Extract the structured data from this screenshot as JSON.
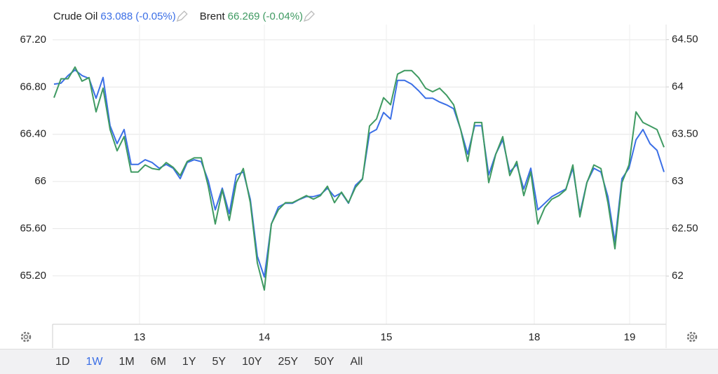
{
  "chart_data": {
    "type": "line",
    "x": [
      0,
      1,
      2,
      3,
      4,
      5,
      6,
      7,
      8,
      9,
      10,
      11,
      12,
      13,
      14,
      15,
      16,
      17,
      18,
      19,
      20,
      21,
      22,
      23,
      24,
      25,
      26,
      27,
      28,
      29,
      30,
      31,
      32,
      33,
      34,
      35,
      36,
      37,
      38,
      39,
      40,
      41,
      42,
      43,
      44,
      45,
      46,
      47,
      48,
      49,
      50,
      51,
      52,
      53,
      54,
      55,
      56,
      57,
      58,
      59,
      60,
      61,
      62,
      63,
      64,
      65,
      66,
      67,
      68,
      69,
      70,
      71,
      72,
      73,
      74,
      75,
      76,
      77,
      78,
      79,
      80,
      81,
      82,
      83,
      84,
      85,
      86,
      87
    ],
    "xlim": [
      -0.2,
      87.3
    ],
    "xticks": [
      {
        "value": 12.2,
        "label": "13"
      },
      {
        "value": 30,
        "label": "14"
      },
      {
        "value": 47.4,
        "label": "15"
      },
      {
        "value": 68.5,
        "label": "18"
      },
      {
        "value": 82.1,
        "label": "19"
      }
    ],
    "ylim": [
      64.79,
      67.33
    ],
    "yticks": [
      {
        "value": 67.2,
        "label": "67.20"
      },
      {
        "value": 66.8,
        "label": "66.80"
      },
      {
        "value": 66.4,
        "label": "66.40"
      },
      66,
      {
        "value": 65.6,
        "label": "65.60"
      },
      {
        "value": 65.2,
        "label": "65.20"
      }
    ],
    "y2lim": [
      61.49,
      64.66
    ],
    "y2ticks": [
      {
        "value": 64.5,
        "label": "64.50"
      },
      64,
      {
        "value": 63.5,
        "label": "63.50"
      },
      63,
      {
        "value": 62.5,
        "label": "62.50"
      },
      62
    ],
    "grid": true,
    "series": [
      {
        "name": "Crude Oil",
        "color": "#3b6fe6",
        "axis": "y2",
        "last": "63.088",
        "change": "(-0.05%)",
        "values": [
          64.03,
          64.04,
          64.12,
          64.18,
          64.12,
          64.09,
          63.88,
          64.1,
          63.59,
          63.4,
          63.55,
          63.18,
          63.18,
          63.23,
          63.2,
          63.14,
          63.18,
          63.14,
          63.03,
          63.2,
          63.23,
          63.21,
          63.01,
          62.7,
          62.93,
          62.66,
          63.07,
          63.1,
          62.81,
          62.21,
          61.99,
          62.55,
          62.73,
          62.77,
          62.77,
          62.81,
          62.84,
          62.84,
          62.86,
          62.93,
          62.84,
          62.88,
          62.77,
          62.96,
          63.03,
          63.51,
          63.55,
          63.73,
          63.66,
          64.07,
          64.07,
          64.03,
          63.96,
          63.88,
          63.88,
          63.84,
          63.81,
          63.77,
          63.55,
          63.29,
          63.59,
          63.59,
          63.07,
          63.29,
          63.44,
          63.1,
          63.18,
          62.92,
          63.14,
          62.7,
          62.77,
          62.84,
          62.88,
          62.92,
          63.14,
          62.66,
          62.99,
          63.14,
          63.1,
          62.84,
          62.36,
          63.03,
          63.14,
          63.44,
          63.55,
          63.4,
          63.33,
          63.1
        ]
      },
      {
        "name": "Brent",
        "color": "#3f9a62",
        "last": "66.269",
        "change": "(-0.04%)",
        "values": [
          66.71,
          66.87,
          66.87,
          66.97,
          66.85,
          66.88,
          66.59,
          66.79,
          66.44,
          66.26,
          66.38,
          66.08,
          66.08,
          66.14,
          66.11,
          66.1,
          66.16,
          66.12,
          66.05,
          66.17,
          66.2,
          66.2,
          65.96,
          65.64,
          65.93,
          65.67,
          65.99,
          66.11,
          65.82,
          65.31,
          65.08,
          65.64,
          65.76,
          65.82,
          65.82,
          65.85,
          65.88,
          65.85,
          65.88,
          65.96,
          65.82,
          65.91,
          65.82,
          65.95,
          66.02,
          66.47,
          66.53,
          66.71,
          66.65,
          66.91,
          66.94,
          66.94,
          66.88,
          66.79,
          66.76,
          66.79,
          66.73,
          66.65,
          66.44,
          66.17,
          66.5,
          66.5,
          65.99,
          66.23,
          66.38,
          66.05,
          66.17,
          65.88,
          66.08,
          65.64,
          65.78,
          65.85,
          65.88,
          65.93,
          66.14,
          65.7,
          65.99,
          66.14,
          66.11,
          65.82,
          65.43,
          65.99,
          66.14,
          66.59,
          66.5,
          66.47,
          66.44,
          66.29
        ]
      }
    ]
  },
  "range_buttons": [
    {
      "label": "1D",
      "active": false
    },
    {
      "label": "1W",
      "active": true
    },
    {
      "label": "1M",
      "active": false
    },
    {
      "label": "6M",
      "active": false
    },
    {
      "label": "1Y",
      "active": false
    },
    {
      "label": "5Y",
      "active": false
    },
    {
      "label": "10Y",
      "active": false
    },
    {
      "label": "25Y",
      "active": false
    },
    {
      "label": "50Y",
      "active": false
    },
    {
      "label": "All",
      "active": false
    }
  ]
}
